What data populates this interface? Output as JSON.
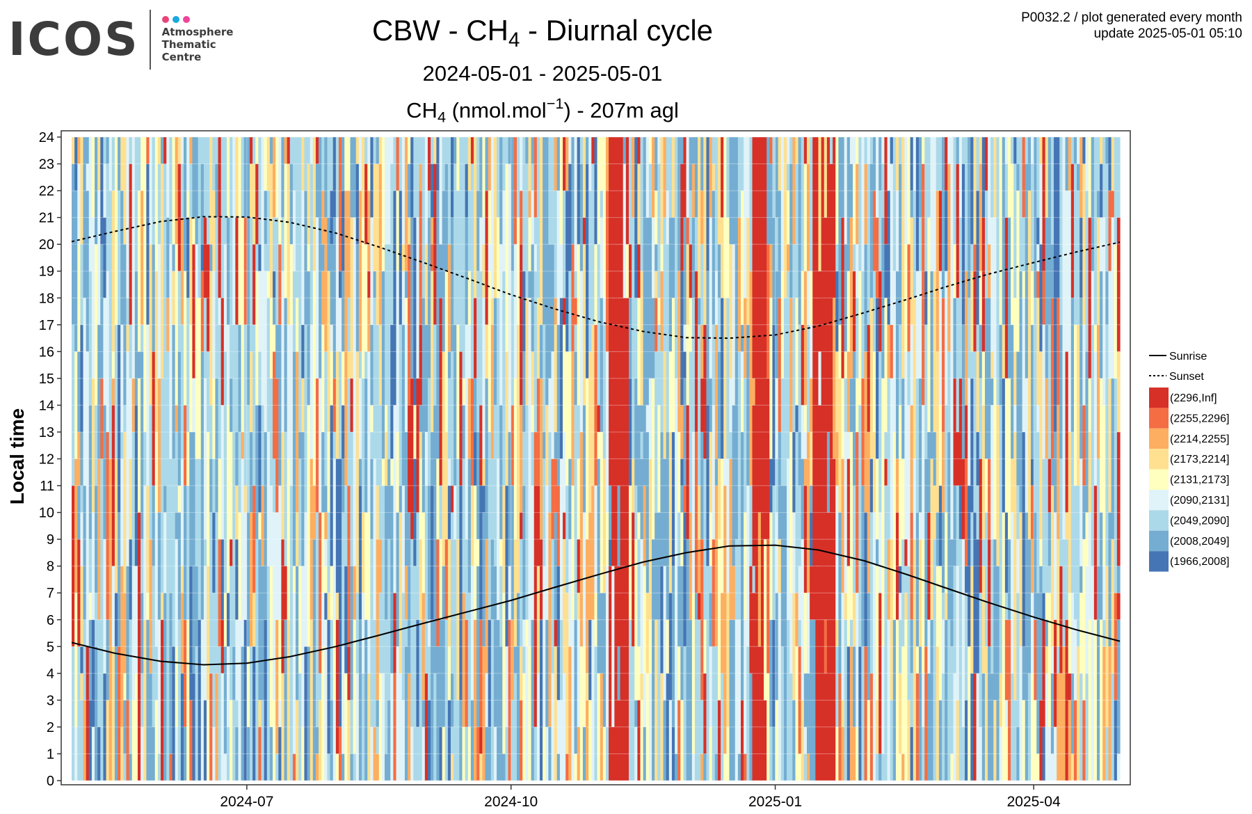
{
  "header": {
    "logo_text": "ICOS",
    "logo_sub": [
      "Atmosphere",
      "Thematic",
      "Centre"
    ],
    "logo_dot_colors": [
      "#e8457a",
      "#1aa8e0",
      "#f0449a"
    ],
    "meta_line1": "P0032.2 / plot generated every month",
    "meta_line2": "update  2025-05-01 05:10"
  },
  "chart_data": {
    "type": "heatmap",
    "title": {
      "pre": "CBW - CH",
      "sub": "4",
      "post": " - Diurnal cycle"
    },
    "subtitle": "2024-05-01 - 2025-05-01",
    "units": {
      "pre": "CH",
      "sub": "4",
      "mid": " (nmol.mol",
      "sup": "−1",
      "post": ") - 207m agl"
    },
    "ylabel": "Local time",
    "x_range": [
      "2024-05-01",
      "2025-05-01"
    ],
    "x_ticks": [
      {
        "date": "2024-07-01",
        "label": "2024-07"
      },
      {
        "date": "2024-10-01",
        "label": "2024-10"
      },
      {
        "date": "2025-01-01",
        "label": "2025-01"
      },
      {
        "date": "2025-04-01",
        "label": "2025-04"
      }
    ],
    "y_ticks": [
      0,
      1,
      2,
      3,
      4,
      5,
      6,
      7,
      8,
      9,
      10,
      11,
      12,
      13,
      14,
      15,
      16,
      17,
      18,
      19,
      20,
      21,
      22,
      23,
      24
    ],
    "y_range": [
      0,
      24
    ],
    "grid": true,
    "legend_position": "right",
    "lines": [
      {
        "name": "Sunrise",
        "style": "solid",
        "points": [
          {
            "date": "2024-05-01",
            "hour": 5.15
          },
          {
            "date": "2024-05-16",
            "hour": 4.75
          },
          {
            "date": "2024-06-01",
            "hour": 4.45
          },
          {
            "date": "2024-06-16",
            "hour": 4.32
          },
          {
            "date": "2024-07-01",
            "hour": 4.38
          },
          {
            "date": "2024-07-16",
            "hour": 4.62
          },
          {
            "date": "2024-08-01",
            "hour": 5.0
          },
          {
            "date": "2024-08-16",
            "hour": 5.42
          },
          {
            "date": "2024-09-01",
            "hour": 5.88
          },
          {
            "date": "2024-09-16",
            "hour": 6.3
          },
          {
            "date": "2024-10-01",
            "hour": 6.72
          },
          {
            "date": "2024-10-16",
            "hour": 7.2
          },
          {
            "date": "2024-11-01",
            "hour": 7.7
          },
          {
            "date": "2024-11-16",
            "hour": 8.15
          },
          {
            "date": "2024-12-01",
            "hour": 8.5
          },
          {
            "date": "2024-12-16",
            "hour": 8.75
          },
          {
            "date": "2025-01-01",
            "hour": 8.78
          },
          {
            "date": "2025-01-16",
            "hour": 8.6
          },
          {
            "date": "2025-02-01",
            "hour": 8.2
          },
          {
            "date": "2025-02-16",
            "hour": 7.68
          },
          {
            "date": "2025-03-01",
            "hour": 7.2
          },
          {
            "date": "2025-03-16",
            "hour": 6.65
          },
          {
            "date": "2025-04-01",
            "hour": 6.1
          },
          {
            "date": "2025-04-16",
            "hour": 5.62
          },
          {
            "date": "2025-05-01",
            "hour": 5.2
          }
        ]
      },
      {
        "name": "Sunset",
        "style": "dashed",
        "points": [
          {
            "date": "2024-05-01",
            "hour": 20.1
          },
          {
            "date": "2024-05-16",
            "hour": 20.48
          },
          {
            "date": "2024-06-01",
            "hour": 20.85
          },
          {
            "date": "2024-06-16",
            "hour": 21.03
          },
          {
            "date": "2024-07-01",
            "hour": 21.02
          },
          {
            "date": "2024-07-16",
            "hour": 20.82
          },
          {
            "date": "2024-08-01",
            "hour": 20.42
          },
          {
            "date": "2024-08-16",
            "hour": 19.9
          },
          {
            "date": "2024-09-01",
            "hour": 19.3
          },
          {
            "date": "2024-09-16",
            "hour": 18.72
          },
          {
            "date": "2024-10-01",
            "hour": 18.12
          },
          {
            "date": "2024-10-16",
            "hour": 17.6
          },
          {
            "date": "2024-11-01",
            "hour": 17.1
          },
          {
            "date": "2024-11-16",
            "hour": 16.75
          },
          {
            "date": "2024-12-01",
            "hour": 16.52
          },
          {
            "date": "2024-12-16",
            "hour": 16.5
          },
          {
            "date": "2025-01-01",
            "hour": 16.62
          },
          {
            "date": "2025-01-16",
            "hour": 16.95
          },
          {
            "date": "2025-02-01",
            "hour": 17.45
          },
          {
            "date": "2025-02-16",
            "hour": 17.95
          },
          {
            "date": "2025-03-01",
            "hour": 18.4
          },
          {
            "date": "2025-03-16",
            "hour": 18.88
          },
          {
            "date": "2025-04-01",
            "hour": 19.32
          },
          {
            "date": "2025-04-16",
            "hour": 19.72
          },
          {
            "date": "2025-05-01",
            "hour": 20.08
          }
        ]
      }
    ],
    "legend_lines": [
      "Sunrise",
      "Sunset"
    ],
    "color_bins": [
      {
        "label": "(2296,Inf]",
        "color": "#d73027",
        "min": 2296,
        "max": null
      },
      {
        "label": "(2255,2296]",
        "color": "#f46d43",
        "min": 2255,
        "max": 2296
      },
      {
        "label": "(2214,2255]",
        "color": "#fdae61",
        "min": 2214,
        "max": 2255
      },
      {
        "label": "(2173,2214]",
        "color": "#fee090",
        "min": 2173,
        "max": 2214
      },
      {
        "label": "(2131,2173]",
        "color": "#ffffbf",
        "min": 2131,
        "max": 2173
      },
      {
        "label": "(2090,2131]",
        "color": "#e0f3f8",
        "min": 2090,
        "max": 2131
      },
      {
        "label": "(2049,2090]",
        "color": "#abd9e9",
        "min": 2049,
        "max": 2090
      },
      {
        "label": "(2008,2049]",
        "color": "#74add1",
        "min": 2008,
        "max": 2049
      },
      {
        "label": "(1966,2008]",
        "color": "#4575b4",
        "min": 1966,
        "max": 2008
      }
    ],
    "high_episodes": [
      {
        "start": "2024-11-04",
        "end": "2024-11-11",
        "hours": [
          0,
          24
        ],
        "bin": "(2296,Inf]"
      },
      {
        "start": "2024-12-24",
        "end": "2024-12-29",
        "hours": [
          0,
          24
        ],
        "bin": "(2296,Inf]"
      },
      {
        "start": "2025-01-14",
        "end": "2025-01-22",
        "hours": [
          0,
          24
        ],
        "bin": "(2296,Inf]"
      },
      {
        "start": "2025-03-04",
        "end": "2025-03-09",
        "hours": [
          10.5,
          14
        ],
        "bin": "(2296,Inf]"
      }
    ]
  }
}
